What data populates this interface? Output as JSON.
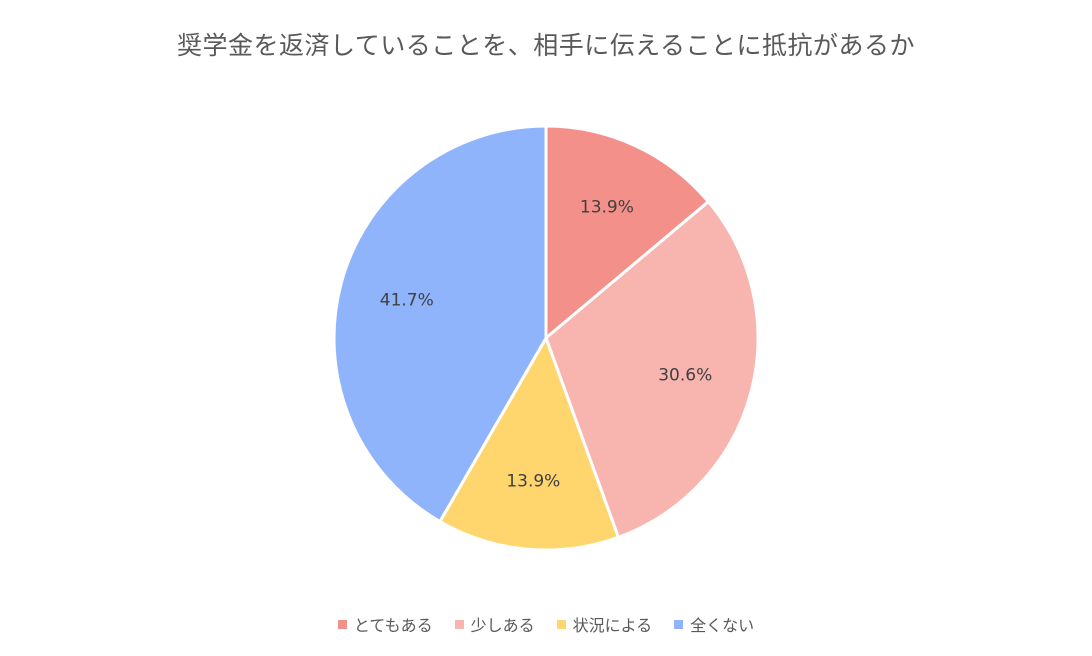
{
  "chart_data": {
    "type": "pie",
    "title": "奨学金を返済していることを、相手に伝えることに抵抗があるか",
    "categories": [
      "とてもある",
      "少しある",
      "状況による",
      "全くない"
    ],
    "values": [
      13.9,
      30.6,
      13.9,
      41.7
    ],
    "value_labels": [
      "13.9%",
      "30.6%",
      "13.9%",
      "41.7%"
    ],
    "colors": [
      "#F4908A",
      "#F8B4AF",
      "#FFD56E",
      "#8FB4FC"
    ],
    "start_angle_deg": 0,
    "direction": "clockwise",
    "legend_position": "bottom"
  }
}
